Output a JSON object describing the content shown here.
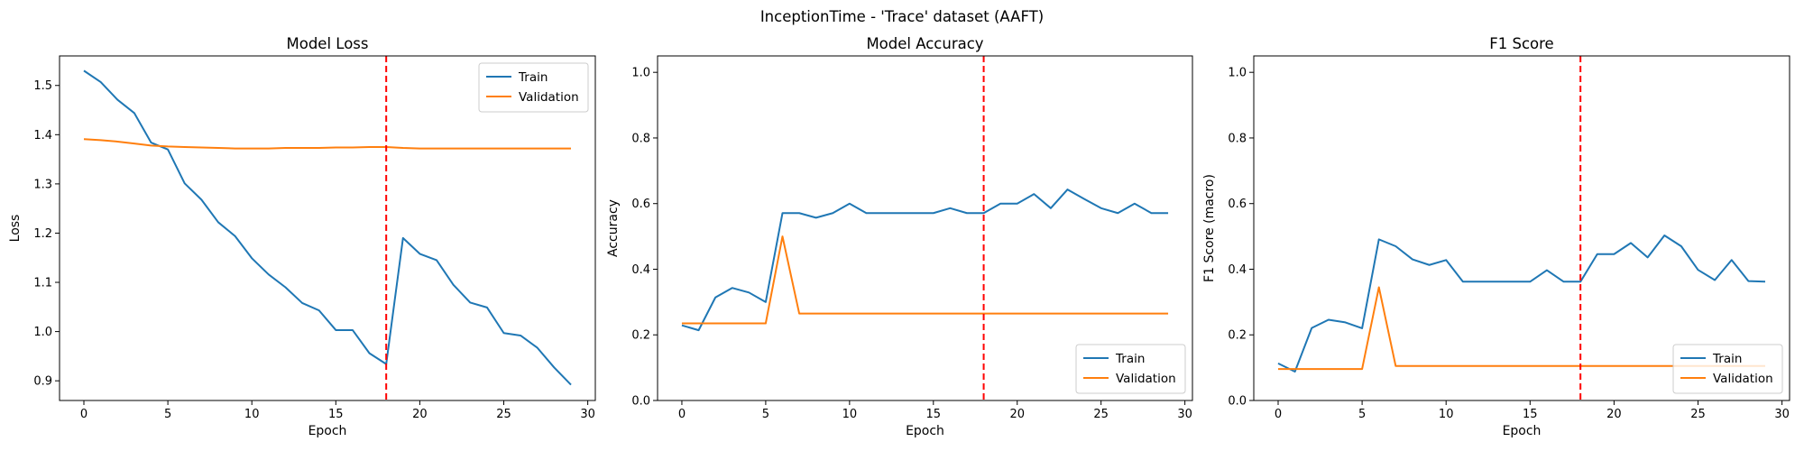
{
  "figure": {
    "suptitle": "InceptionTime - 'Trace' dataset (AAFT)"
  },
  "colors": {
    "train": "#1f77b4",
    "validation": "#ff7f0e",
    "marker": "#ff0000"
  },
  "chart_data": [
    {
      "type": "line",
      "title": "Model Loss",
      "xlabel": "Epoch",
      "ylabel": "Loss",
      "xlim": [
        -1.45,
        30.45
      ],
      "ylim": [
        0.86,
        1.56
      ],
      "xticks": [
        0,
        5,
        10,
        15,
        20,
        25,
        30
      ],
      "xtick_labels": [
        "0",
        "5",
        "10",
        "15",
        "20",
        "25",
        "30"
      ],
      "yticks": [
        0.9,
        1.0,
        1.1,
        1.2,
        1.3,
        1.4,
        1.5
      ],
      "ytick_labels": [
        "0.9",
        "1.0",
        "1.1",
        "1.2",
        "1.3",
        "1.4",
        "1.5"
      ],
      "legend_loc": "upper right",
      "vline_x": 18,
      "x": [
        0,
        1,
        2,
        3,
        4,
        5,
        6,
        7,
        8,
        9,
        10,
        11,
        12,
        13,
        14,
        15,
        16,
        17,
        18,
        19,
        20,
        21,
        22,
        23,
        24,
        25,
        26,
        27,
        28,
        29
      ],
      "series": [
        {
          "name": "Train",
          "color": "#1f77b4",
          "values": [
            1.53,
            1.507,
            1.471,
            1.444,
            1.384,
            1.37,
            1.301,
            1.268,
            1.222,
            1.194,
            1.149,
            1.116,
            1.09,
            1.058,
            1.043,
            1.003,
            1.003,
            0.956,
            0.934,
            1.19,
            1.158,
            1.145,
            1.095,
            1.059,
            1.049,
            0.997,
            0.992,
            0.967,
            0.927,
            0.892
          ]
        },
        {
          "name": "Validation",
          "color": "#ff7f0e",
          "values": [
            1.391,
            1.389,
            1.386,
            1.382,
            1.378,
            1.376,
            1.375,
            1.374,
            1.373,
            1.372,
            1.372,
            1.372,
            1.373,
            1.373,
            1.373,
            1.374,
            1.374,
            1.375,
            1.375,
            1.373,
            1.372,
            1.372,
            1.372,
            1.372,
            1.372,
            1.372,
            1.372,
            1.372,
            1.372,
            1.372
          ]
        }
      ]
    },
    {
      "type": "line",
      "title": "Model Accuracy",
      "xlabel": "Epoch",
      "ylabel": "Accuracy",
      "xlim": [
        -1.45,
        30.45
      ],
      "ylim": [
        0.0,
        1.05
      ],
      "xticks": [
        0,
        5,
        10,
        15,
        20,
        25,
        30
      ],
      "xtick_labels": [
        "0",
        "5",
        "10",
        "15",
        "20",
        "25",
        "30"
      ],
      "yticks": [
        0.0,
        0.2,
        0.4,
        0.6,
        0.8,
        1.0
      ],
      "ytick_labels": [
        "0.0",
        "0.2",
        "0.4",
        "0.6",
        "0.8",
        "1.0"
      ],
      "legend_loc": "lower right",
      "vline_x": 18,
      "x": [
        0,
        1,
        2,
        3,
        4,
        5,
        6,
        7,
        8,
        9,
        10,
        11,
        12,
        13,
        14,
        15,
        16,
        17,
        18,
        19,
        20,
        21,
        22,
        23,
        24,
        25,
        26,
        27,
        28,
        29
      ],
      "series": [
        {
          "name": "Train",
          "color": "#1f77b4",
          "values": [
            0.229,
            0.214,
            0.314,
            0.343,
            0.329,
            0.3,
            0.571,
            0.571,
            0.557,
            0.571,
            0.6,
            0.571,
            0.571,
            0.571,
            0.571,
            0.571,
            0.586,
            0.571,
            0.571,
            0.6,
            0.6,
            0.629,
            0.586,
            0.643,
            0.614,
            0.586,
            0.571,
            0.6,
            0.571,
            0.571
          ]
        },
        {
          "name": "Validation",
          "color": "#ff7f0e",
          "values": [
            0.235,
            0.235,
            0.235,
            0.235,
            0.235,
            0.235,
            0.5,
            0.265,
            0.265,
            0.265,
            0.265,
            0.265,
            0.265,
            0.265,
            0.265,
            0.265,
            0.265,
            0.265,
            0.265,
            0.265,
            0.265,
            0.265,
            0.265,
            0.265,
            0.265,
            0.265,
            0.265,
            0.265,
            0.265,
            0.265
          ]
        }
      ]
    },
    {
      "type": "line",
      "title": "F1 Score",
      "xlabel": "Epoch",
      "ylabel": "F1 Score (macro)",
      "xlim": [
        -1.45,
        30.45
      ],
      "ylim": [
        0.0,
        1.05
      ],
      "xticks": [
        0,
        5,
        10,
        15,
        20,
        25,
        30
      ],
      "xtick_labels": [
        "0",
        "5",
        "10",
        "15",
        "20",
        "25",
        "30"
      ],
      "yticks": [
        0.0,
        0.2,
        0.4,
        0.6,
        0.8,
        1.0
      ],
      "ytick_labels": [
        "0.0",
        "0.2",
        "0.4",
        "0.6",
        "0.8",
        "1.0"
      ],
      "legend_loc": "lower right",
      "vline_x": 18,
      "x": [
        0,
        1,
        2,
        3,
        4,
        5,
        6,
        7,
        8,
        9,
        10,
        11,
        12,
        13,
        14,
        15,
        16,
        17,
        18,
        19,
        20,
        21,
        22,
        23,
        24,
        25,
        26,
        27,
        28,
        29
      ],
      "series": [
        {
          "name": "Train",
          "color": "#1f77b4",
          "values": [
            0.113,
            0.088,
            0.221,
            0.246,
            0.238,
            0.22,
            0.491,
            0.47,
            0.43,
            0.413,
            0.428,
            0.362,
            0.362,
            0.362,
            0.362,
            0.362,
            0.397,
            0.362,
            0.362,
            0.446,
            0.446,
            0.48,
            0.436,
            0.503,
            0.47,
            0.398,
            0.367,
            0.428,
            0.364,
            0.362
          ]
        },
        {
          "name": "Validation",
          "color": "#ff7f0e",
          "values": [
            0.096,
            0.096,
            0.096,
            0.096,
            0.096,
            0.096,
            0.345,
            0.105,
            0.105,
            0.105,
            0.105,
            0.105,
            0.105,
            0.105,
            0.105,
            0.105,
            0.105,
            0.105,
            0.105,
            0.105,
            0.105,
            0.105,
            0.105,
            0.105,
            0.105,
            0.105,
            0.105,
            0.105,
            0.105,
            0.105
          ]
        }
      ]
    }
  ]
}
